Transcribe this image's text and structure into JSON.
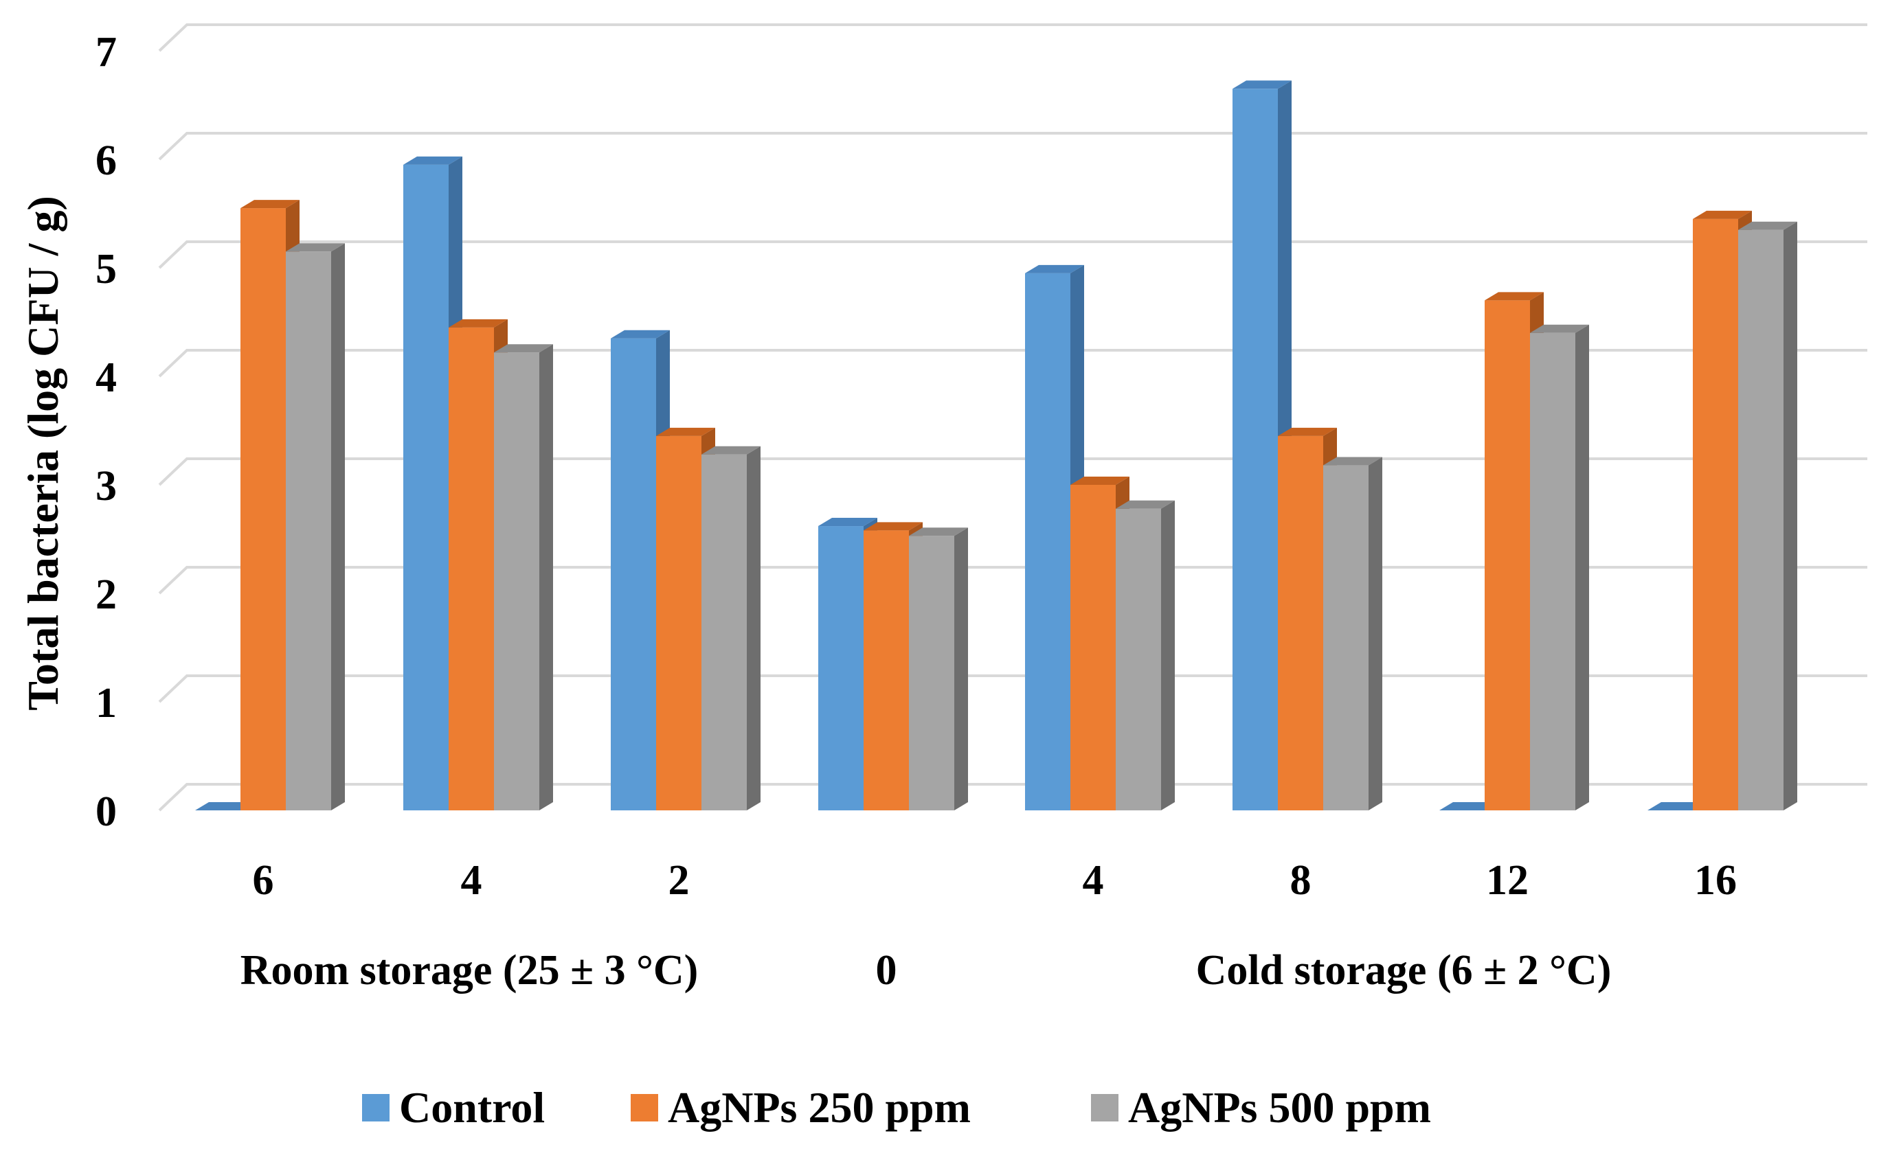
{
  "chart_data": {
    "type": "bar",
    "style": "3d-clustered-column",
    "title": "",
    "ylabel": "Total bacteria (log CFU / g)",
    "xlabel": "",
    "ylim": [
      0,
      7
    ],
    "yticks": [
      "0",
      "1",
      "2",
      "3",
      "4",
      "5",
      "6",
      "7"
    ],
    "gridlines": true,
    "legend_position": "bottom",
    "categories": [
      "6",
      "4",
      "2",
      "",
      "4",
      "8",
      "12",
      "16"
    ],
    "group_labels": [
      {
        "label": "Room storage (25 ± 3 °C)",
        "spans_categories": [
          0,
          2
        ]
      },
      {
        "label": "0",
        "spans_categories": [
          3,
          3
        ]
      },
      {
        "label": "Cold storage (6 ± 2 °C)",
        "spans_categories": [
          4,
          7
        ]
      }
    ],
    "series": [
      {
        "name": "Control",
        "color": "#5B9BD5",
        "side_color": "#3E6FA0",
        "top_color": "#4A84BE",
        "values": [
          0,
          5.95,
          4.35,
          2.62,
          4.95,
          6.65,
          0,
          0
        ]
      },
      {
        "name": "AgNPs 250 ppm",
        "color": "#ED7D31",
        "side_color": "#A9541A",
        "top_color": "#C7621E",
        "values": [
          5.55,
          4.45,
          3.45,
          2.58,
          3.0,
          3.45,
          4.7,
          5.45
        ]
      },
      {
        "name": "AgNPs 500 ppm",
        "color": "#A5A5A5",
        "side_color": "#6E6E6E",
        "top_color": "#8C8C8C",
        "values": [
          5.15,
          4.22,
          3.28,
          2.53,
          2.78,
          3.18,
          4.4,
          5.35
        ]
      }
    ]
  }
}
